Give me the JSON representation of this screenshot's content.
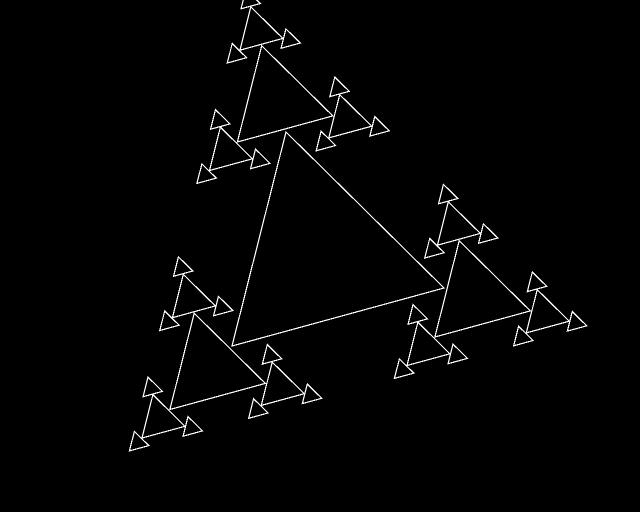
{
  "colors": {
    "background": "#000000",
    "stroke": "#ffffff"
  },
  "fractal": {
    "shape": "triangle",
    "depth": 3,
    "scale_ratio": 0.45
  }
}
